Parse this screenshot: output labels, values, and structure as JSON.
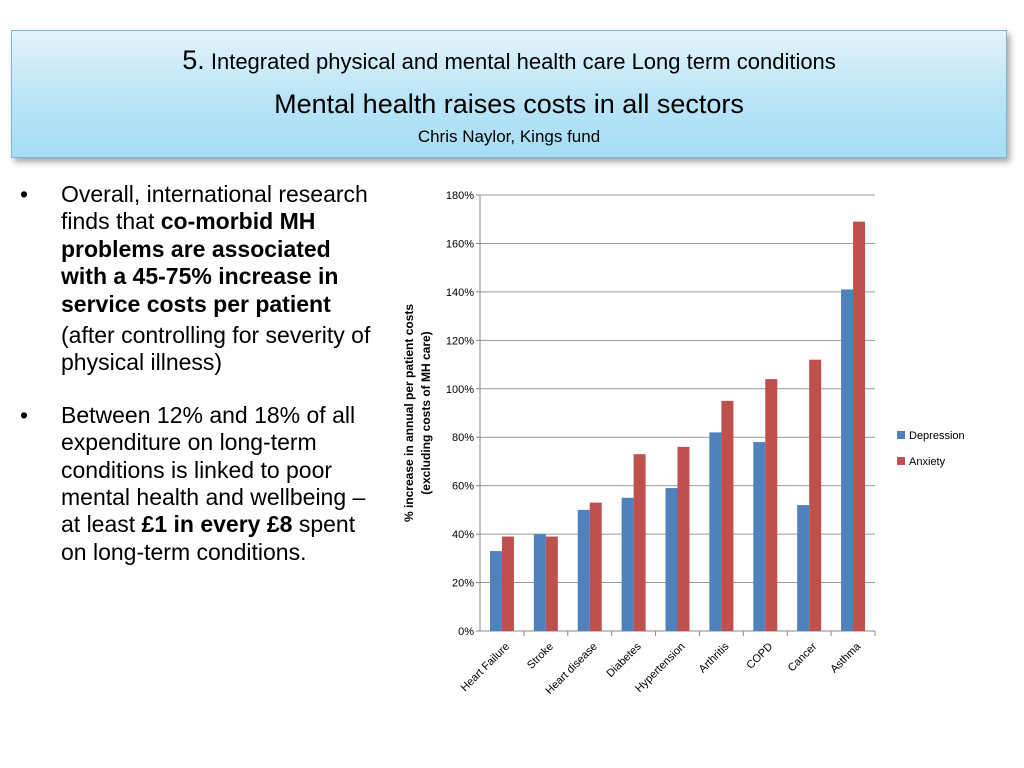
{
  "header": {
    "number": "5.",
    "title_line1": "Integrated physical and mental health care Long term conditions",
    "title_line2": "Mental health raises costs in all sectors",
    "author": "Chris Naylor, Kings fund"
  },
  "bullets": [
    {
      "marker": "•",
      "text_normal": "Overall, international research finds that ",
      "text_bold": "co-morbid MH problems are associated with a 45-75% increase in service costs per patient",
      "sub": "(after controlling for severity of physical illness)"
    },
    {
      "marker": "•",
      "text_normal": "Between 12% and 18% of all expenditure on long-term conditions is linked to poor mental health and wellbeing – at least ",
      "text_bold": "£1 in every £8",
      "text_end": " spent on long-term conditions."
    }
  ],
  "chart_data": {
    "type": "bar",
    "title": "",
    "xlabel": "",
    "ylabel": "% increase in annual per patient costs (excluding costs of MH care)",
    "ylabel_lines": [
      "% increase in annual per patient costs",
      "(excluding costs of MH care)"
    ],
    "categories": [
      "Heart Failure",
      "Stroke",
      "Heart disease",
      "Diabetes",
      "Hypertension",
      "Arthritis",
      "COPD",
      "Cancer",
      "Asthma"
    ],
    "series": [
      {
        "name": "Depression",
        "color": "#4f81bd",
        "values": [
          33,
          40,
          50,
          55,
          59,
          82,
          78,
          52,
          141
        ]
      },
      {
        "name": "Anxiety",
        "color": "#c0504d",
        "values": [
          39,
          39,
          53,
          73,
          76,
          95,
          104,
          112,
          169
        ]
      }
    ],
    "ylim": [
      0,
      180
    ],
    "yticks": [
      "0%",
      "20%",
      "40%",
      "60%",
      "80%",
      "100%",
      "120%",
      "140%",
      "160%",
      "180%"
    ],
    "grid": true,
    "legend_position": "right"
  }
}
